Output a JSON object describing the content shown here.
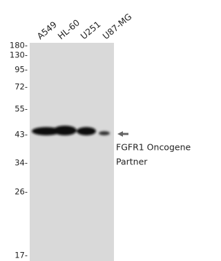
{
  "lanes": [
    "A549",
    "HL-60",
    "U251",
    "U87-MG"
  ],
  "markers": [
    "180-",
    "130-",
    "95-",
    "72-",
    "55-",
    "43-",
    "34-",
    "26-",
    "17-"
  ],
  "band_label": [
    "FGFR1 Oncogene",
    "Partner"
  ]
}
